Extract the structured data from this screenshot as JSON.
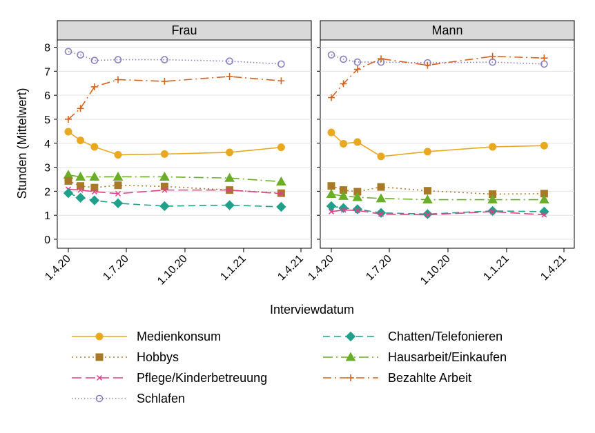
{
  "chart_data": {
    "type": "line",
    "xlabel": "Interviewdatum",
    "ylabel": "Stunden (Mittelwert)",
    "ylim": [
      0,
      8
    ],
    "yticks": [
      0,
      1,
      2,
      3,
      4,
      5,
      6,
      7,
      8
    ],
    "xlim": [
      "2020-04-01",
      "2021-04-01"
    ],
    "xticks": [
      {
        "date": "2020-04-01",
        "label": "1.4.20"
      },
      {
        "date": "2020-07-01",
        "label": "1.7.20"
      },
      {
        "date": "2020-10-01",
        "label": "1.10.20"
      },
      {
        "date": "2021-01-01",
        "label": "1.1.21"
      },
      {
        "date": "2021-04-01",
        "label": "1.4.21"
      }
    ],
    "grid": true,
    "legend_position": "bottom",
    "series_styles": {
      "Medienkonsum": {
        "color": "#E8A820",
        "marker": "circle",
        "dash": ""
      },
      "Hobbys": {
        "color": "#A87A28",
        "marker": "square",
        "dash": "2,4"
      },
      "Pflege/Kinderbetreuung": {
        "color": "#E0408A",
        "marker": "x",
        "dash": "14,6"
      },
      "Schlafen": {
        "color": "#8A7FC0",
        "marker": "circle-open",
        "dash": "1.5,3"
      },
      "Chatten/Telefonieren": {
        "color": "#1FA08A",
        "marker": "diamond",
        "dash": "10,6"
      },
      "Hausarbeit/Einkaufen": {
        "color": "#6AAE28",
        "marker": "triangle",
        "dash": "14,5,2,5"
      },
      "Bezahlte Arbeit": {
        "color": "#D8621C",
        "marker": "plus",
        "dash": "12,5,2,5"
      }
    },
    "legend_order": [
      "Medienkonsum",
      "Chatten/Telefonieren",
      "Hobbys",
      "Hausarbeit/Einkaufen",
      "Pflege/Kinderbetreuung",
      "Bezahlte Arbeit",
      "Schlafen"
    ],
    "panels": [
      {
        "title": "Frau",
        "series": [
          {
            "name": "Schlafen",
            "x": [
              "2020-04-01",
              "2020-04-20",
              "2020-05-12",
              "2020-06-18",
              "2020-08-30",
              "2020-12-10",
              "2021-03-01"
            ],
            "values": [
              7.82,
              7.68,
              7.45,
              7.48,
              7.48,
              7.42,
              7.3
            ]
          },
          {
            "name": "Bezahlte Arbeit",
            "x": [
              "2020-04-01",
              "2020-04-20",
              "2020-05-12",
              "2020-06-18",
              "2020-08-30",
              "2020-12-10",
              "2021-03-01"
            ],
            "values": [
              5.0,
              5.45,
              6.35,
              6.65,
              6.58,
              6.78,
              6.6
            ]
          },
          {
            "name": "Medienkonsum",
            "x": [
              "2020-04-01",
              "2020-04-20",
              "2020-05-12",
              "2020-06-18",
              "2020-08-30",
              "2020-12-10",
              "2021-03-01"
            ],
            "values": [
              4.48,
              4.12,
              3.85,
              3.52,
              3.55,
              3.62,
              3.83
            ]
          },
          {
            "name": "Hausarbeit/Einkaufen",
            "x": [
              "2020-04-01",
              "2020-04-20",
              "2020-05-12",
              "2020-06-18",
              "2020-08-30",
              "2020-12-10",
              "2021-03-01"
            ],
            "values": [
              2.68,
              2.6,
              2.6,
              2.6,
              2.6,
              2.55,
              2.4
            ]
          },
          {
            "name": "Hobbys",
            "x": [
              "2020-04-01",
              "2020-04-20",
              "2020-05-12",
              "2020-06-18",
              "2020-08-30",
              "2020-12-10",
              "2021-03-01"
            ],
            "values": [
              2.43,
              2.22,
              2.15,
              2.25,
              2.2,
              2.05,
              1.92
            ]
          },
          {
            "name": "Pflege/Kinderbetreuung",
            "x": [
              "2020-04-01",
              "2020-04-20",
              "2020-05-12",
              "2020-06-18",
              "2020-08-30",
              "2020-12-10",
              "2021-03-01"
            ],
            "values": [
              2.08,
              2.05,
              1.98,
              1.9,
              2.05,
              2.05,
              1.9
            ]
          },
          {
            "name": "Chatten/Telefonieren",
            "x": [
              "2020-04-01",
              "2020-04-20",
              "2020-05-12",
              "2020-06-18",
              "2020-08-30",
              "2020-12-10",
              "2021-03-01"
            ],
            "values": [
              1.92,
              1.73,
              1.62,
              1.5,
              1.38,
              1.42,
              1.35
            ]
          }
        ]
      },
      {
        "title": "Mann",
        "series": [
          {
            "name": "Schlafen",
            "x": [
              "2020-04-01",
              "2020-04-20",
              "2020-05-12",
              "2020-06-18",
              "2020-08-30",
              "2020-12-10",
              "2021-03-01"
            ],
            "values": [
              7.68,
              7.5,
              7.38,
              7.38,
              7.35,
              7.38,
              7.3
            ]
          },
          {
            "name": "Bezahlte Arbeit",
            "x": [
              "2020-04-01",
              "2020-04-20",
              "2020-05-12",
              "2020-06-18",
              "2020-08-30",
              "2020-12-10",
              "2021-03-01"
            ],
            "values": [
              5.9,
              6.48,
              7.08,
              7.52,
              7.25,
              7.62,
              7.55
            ]
          },
          {
            "name": "Medienkonsum",
            "x": [
              "2020-04-01",
              "2020-04-20",
              "2020-05-12",
              "2020-06-18",
              "2020-08-30",
              "2020-12-10",
              "2021-03-01"
            ],
            "values": [
              4.45,
              3.98,
              4.05,
              3.45,
              3.65,
              3.85,
              3.9
            ]
          },
          {
            "name": "Hobbys",
            "x": [
              "2020-04-01",
              "2020-04-20",
              "2020-05-12",
              "2020-06-18",
              "2020-08-30",
              "2020-12-10",
              "2021-03-01"
            ],
            "values": [
              2.22,
              2.05,
              1.98,
              2.18,
              2.02,
              1.88,
              1.9
            ]
          },
          {
            "name": "Hausarbeit/Einkaufen",
            "x": [
              "2020-04-01",
              "2020-04-20",
              "2020-05-12",
              "2020-06-18",
              "2020-08-30",
              "2020-12-10",
              "2021-03-01"
            ],
            "values": [
              1.88,
              1.8,
              1.75,
              1.7,
              1.65,
              1.65,
              1.65
            ]
          },
          {
            "name": "Chatten/Telefonieren",
            "x": [
              "2020-04-01",
              "2020-04-20",
              "2020-05-12",
              "2020-06-18",
              "2020-08-30",
              "2020-12-10",
              "2021-03-01"
            ],
            "values": [
              1.38,
              1.3,
              1.25,
              1.1,
              1.05,
              1.18,
              1.15
            ]
          },
          {
            "name": "Pflege/Kinderbetreuung",
            "x": [
              "2020-04-01",
              "2020-04-20",
              "2020-05-12",
              "2020-06-18",
              "2020-08-30",
              "2020-12-10",
              "2021-03-01"
            ],
            "values": [
              1.15,
              1.22,
              1.2,
              1.05,
              1.02,
              1.15,
              1.02
            ]
          }
        ]
      }
    ]
  }
}
